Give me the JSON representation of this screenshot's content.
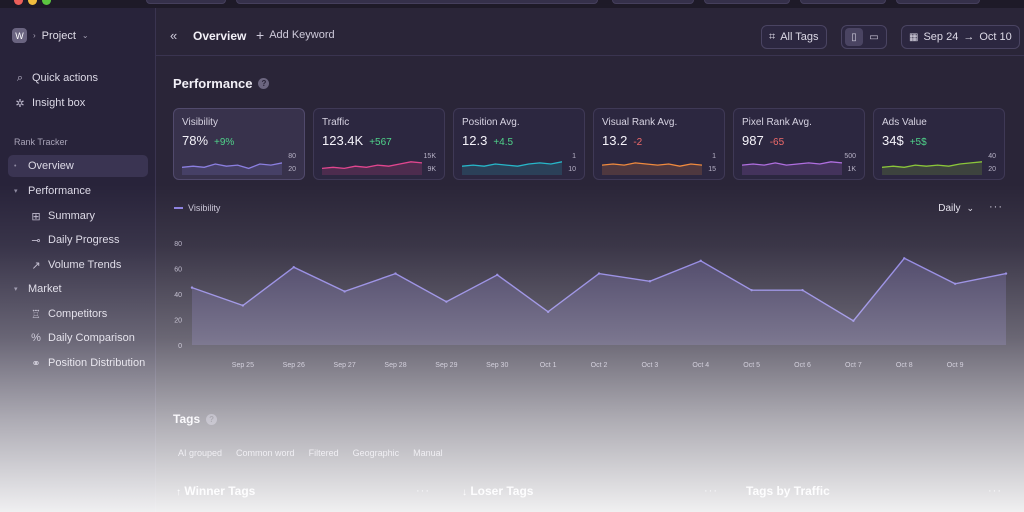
{
  "sidebar": {
    "project": {
      "badge": "W",
      "label": "Project"
    },
    "quick_actions": "Quick actions",
    "insight_box": "Insight box",
    "section_label": "Rank Tracker",
    "items": [
      {
        "label": "Overview"
      },
      {
        "label": "Performance"
      },
      {
        "label": "Summary"
      },
      {
        "label": "Daily Progress"
      },
      {
        "label": "Volume Trends"
      },
      {
        "label": "Market"
      },
      {
        "label": "Competitors"
      },
      {
        "label": "Daily Comparison"
      },
      {
        "label": "Position Distribution"
      }
    ]
  },
  "header": {
    "title": "Overview",
    "add_keyword": "Add Keyword",
    "all_tags": "All Tags",
    "date_from": "Sep 24",
    "date_to": "Oct 10"
  },
  "performance": {
    "title": "Performance",
    "cards": [
      {
        "label": "Visibility",
        "value": "78%",
        "delta": "+9%",
        "trend": "pos",
        "top": "80",
        "bottom": "20",
        "color": "#8b7fe0",
        "spark": [
          0.35,
          0.4,
          0.35,
          0.5,
          0.4,
          0.45,
          0.3,
          0.5,
          0.45,
          0.55
        ]
      },
      {
        "label": "Traffic",
        "value": "123.4K",
        "delta": "+567",
        "trend": "pos",
        "top": "15K",
        "bottom": "9K",
        "color": "#e2468f",
        "spark": [
          0.3,
          0.35,
          0.3,
          0.4,
          0.35,
          0.45,
          0.4,
          0.5,
          0.6,
          0.55
        ]
      },
      {
        "label": "Position Avg.",
        "value": "12.3",
        "delta": "+4.5",
        "trend": "pos",
        "top": "1",
        "bottom": "10",
        "color": "#27b7c9",
        "spark": [
          0.4,
          0.45,
          0.4,
          0.5,
          0.45,
          0.4,
          0.5,
          0.55,
          0.5,
          0.6
        ]
      },
      {
        "label": "Visual Rank Avg.",
        "value": "13.2",
        "delta": "-2",
        "trend": "neg",
        "top": "1",
        "bottom": "15",
        "color": "#f08a3e",
        "spark": [
          0.45,
          0.5,
          0.45,
          0.55,
          0.5,
          0.45,
          0.5,
          0.4,
          0.5,
          0.45
        ]
      },
      {
        "label": "Pixel Rank Avg.",
        "value": "987",
        "delta": "-65",
        "trend": "neg",
        "top": "500",
        "bottom": "1K",
        "color": "#b06fe0",
        "spark": [
          0.45,
          0.5,
          0.45,
          0.55,
          0.45,
          0.5,
          0.55,
          0.5,
          0.6,
          0.55
        ]
      },
      {
        "label": "Ads Value",
        "value": "34$",
        "delta": "+5$",
        "trend": "pos",
        "top": "40",
        "bottom": "20",
        "color": "#8bc63a",
        "spark": [
          0.35,
          0.4,
          0.35,
          0.45,
          0.4,
          0.45,
          0.4,
          0.5,
          0.55,
          0.6
        ]
      }
    ]
  },
  "chart_data": {
    "type": "area",
    "legend": [
      "Visibility"
    ],
    "period": "Daily",
    "x": [
      "Sep 24",
      "Sep 25",
      "Sep 26",
      "Sep 27",
      "Sep 28",
      "Sep 29",
      "Sep 30",
      "Oct 1",
      "Oct 2",
      "Oct 3",
      "Oct 4",
      "Oct 5",
      "Oct 6",
      "Oct 7",
      "Oct 8",
      "Oct 9",
      "Oct 10"
    ],
    "xlabels": [
      "Sep 25",
      "Sep 26",
      "Sep 27",
      "Sep 28",
      "Sep 29",
      "Sep 30",
      "Oct 1",
      "Oct 2",
      "Oct 3",
      "Oct 4",
      "Oct 5",
      "Oct 6",
      "Oct 7",
      "Oct 8",
      "Oct 9"
    ],
    "series": [
      {
        "name": "Visibility",
        "values": [
          45,
          31,
          61,
          42,
          56,
          34,
          55,
          26,
          56,
          50,
          66,
          43,
          43,
          19,
          68,
          48,
          56
        ]
      }
    ],
    "ylim": [
      0,
      80
    ],
    "yticks": [
      0,
      20,
      40,
      60,
      80
    ],
    "color": "#8b7fe0"
  },
  "tags": {
    "title": "Tags",
    "filters": [
      "AI grouped",
      "Common word",
      "Filtered",
      "Geographic",
      "Manual"
    ],
    "columns": [
      "Winner Tags",
      "Loser Tags",
      "Tags by Traffic"
    ]
  }
}
